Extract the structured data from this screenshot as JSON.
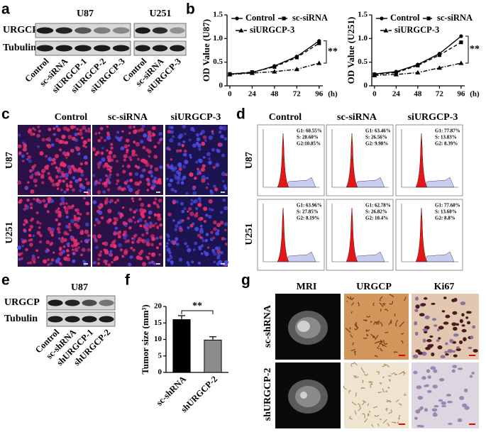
{
  "panels": {
    "a": {
      "letter": "a",
      "rows": [
        "URGCP",
        "Tubulin"
      ],
      "groups": [
        {
          "name": "U87",
          "lanes": [
            "Control",
            "sc-siRNA",
            "siURGCP-1",
            "siURGCP-2",
            "siURGCP-3"
          ]
        },
        {
          "name": "U251",
          "lanes": [
            "Control",
            "sc-siRNA",
            "siURGCP-3"
          ]
        }
      ]
    },
    "b": {
      "letter": "b"
    },
    "c": {
      "letter": "c",
      "columns": [
        "Control",
        "sc-siRNA",
        "siURGCP-3"
      ],
      "rows": [
        "U87",
        "U251"
      ]
    },
    "d": {
      "letter": "d",
      "columns": [
        "Control",
        "sc-siRNA",
        "siURGCP-3"
      ],
      "rows": [
        "U87",
        "U251"
      ],
      "cells": [
        [
          [
            "G1: 60.55%",
            "S: 28.60%",
            "G2:10.85%"
          ],
          [
            "G1: 63.46%",
            "S: 26.56%",
            "G2: 9.98%"
          ],
          [
            "G1: 77.87%",
            "S: 13.83%",
            "G2: 8.39%"
          ]
        ],
        [
          [
            "G1: 63.96%",
            "S: 27.85%",
            "G2: 8.19%"
          ],
          [
            "G1: 62.78%",
            "S: 26.82%",
            "G2: 10.4%"
          ],
          [
            "G1: 77.60%",
            "S: 13.60%",
            "G2: 8.8%"
          ]
        ]
      ]
    },
    "e": {
      "letter": "e",
      "group": "U87",
      "rows": [
        "URGCP",
        "Tubulin"
      ],
      "lanes": [
        "Control",
        "sc-shRNA",
        "shURGCP-1",
        "shURGCP-2"
      ]
    },
    "f": {
      "letter": "f"
    },
    "g": {
      "letter": "g",
      "columns": [
        "MRI",
        "URGCP",
        "Ki67"
      ],
      "rows": [
        "sc-shRNA",
        "shURGCP-2"
      ]
    }
  },
  "chart_data": [
    {
      "type": "line",
      "ylabel": "OD Value (U87)",
      "xlabel": "(h)",
      "annotation": "**",
      "x": [
        0,
        24,
        48,
        72,
        96
      ],
      "xlim": [
        -3,
        100
      ],
      "xticks": [
        0,
        24,
        48,
        72,
        96
      ],
      "ylim": [
        0,
        1.5
      ],
      "yticks": [
        0,
        0.5,
        {
          "value": 1,
          "label": "1.0"
        },
        1.5
      ],
      "series": [
        {
          "name": "Control",
          "color": "#000000",
          "marker": "circle",
          "dash": "solid",
          "values": [
            0.25,
            0.28,
            0.42,
            0.62,
            0.95
          ]
        },
        {
          "name": "sc-siRNA",
          "color": "#000000",
          "marker": "square",
          "dash": "dash",
          "values": [
            0.25,
            0.29,
            0.4,
            0.6,
            0.9
          ]
        },
        {
          "name": "siURGCP-3",
          "color": "#000000",
          "marker": "triangle",
          "dash": "dashdot",
          "values": [
            0.24,
            0.27,
            0.3,
            0.35,
            0.48
          ]
        }
      ]
    },
    {
      "type": "line",
      "ylabel": "OD Value (U251)",
      "xlabel": "(h)",
      "annotation": "**",
      "x": [
        0,
        24,
        48,
        72,
        96
      ],
      "xlim": [
        -3,
        100
      ],
      "xticks": [
        0,
        24,
        48,
        72,
        96
      ],
      "ylim": [
        0,
        1.5
      ],
      "yticks": [
        0,
        0.5,
        {
          "value": 1,
          "label": "1.0"
        },
        1.5
      ],
      "series": [
        {
          "name": "Control",
          "color": "#000000",
          "marker": "circle",
          "dash": "solid",
          "values": [
            0.25,
            0.3,
            0.45,
            0.68,
            1.05
          ]
        },
        {
          "name": "sc-siRNA",
          "color": "#000000",
          "marker": "square",
          "dash": "dash",
          "values": [
            0.24,
            0.28,
            0.43,
            0.65,
            0.92
          ]
        },
        {
          "name": "siURGCP-3",
          "color": "#000000",
          "marker": "triangle",
          "dash": "dashdot",
          "values": [
            0.22,
            0.24,
            0.28,
            0.38,
            0.48
          ]
        }
      ]
    },
    {
      "type": "bar",
      "ylabel": "Tumor size (mm³)",
      "annotation": "**",
      "categories": [
        "sc-shRNA",
        "shURGCP-2"
      ],
      "values": [
        16,
        9.8
      ],
      "errors": [
        1.2,
        1.0
      ],
      "colors": [
        "#000000",
        "#8c8c8c"
      ],
      "ylim": [
        0,
        20
      ],
      "yticks": [
        0,
        5,
        10,
        15,
        20
      ]
    }
  ]
}
